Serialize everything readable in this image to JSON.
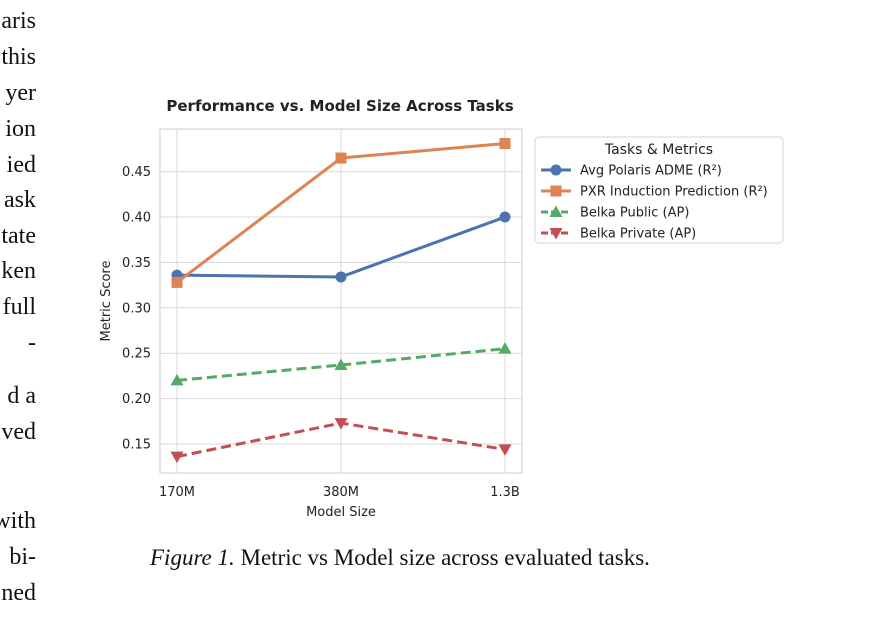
{
  "left_column_fragments": [
    "aris",
    "this",
    "yer",
    "ion",
    "ied",
    "ask",
    "tate",
    "ken",
    "full",
    "-",
    "d a",
    "ved",
    "with",
    "bi-",
    "ned"
  ],
  "caption": {
    "label": "Figure 1.",
    "text": "Metric vs Model size across evaluated tasks."
  },
  "chart_data": {
    "type": "line",
    "title": "Performance vs. Model Size Across Tasks",
    "xlabel": "Model Size",
    "ylabel": "Metric Score",
    "categories": [
      "170M",
      "380M",
      "1.3B"
    ],
    "ylim": [
      0.118,
      0.497
    ],
    "yticks": [
      0.15,
      0.2,
      0.25,
      0.3,
      0.35,
      0.4,
      0.45
    ],
    "ytick_labels": [
      "0.15",
      "0.20",
      "0.25",
      "0.30",
      "0.35",
      "0.40",
      "0.45"
    ],
    "grid": true,
    "legend": {
      "title": "Tasks & Metrics",
      "placement": "outside-right"
    },
    "series": [
      {
        "name": "Avg Polaris ADME (R²)",
        "values": [
          0.336,
          0.334,
          0.4
        ],
        "color": "#4c72b0",
        "marker": "circle",
        "dash": "solid"
      },
      {
        "name": "PXR Induction Prediction (R²)",
        "values": [
          0.328,
          0.465,
          0.481
        ],
        "color": "#dd8452",
        "marker": "square",
        "dash": "solid"
      },
      {
        "name": "Belka Public (AP)",
        "values": [
          0.22,
          0.237,
          0.255
        ],
        "color": "#55a868",
        "marker": "triangle-up",
        "dash": "dashed"
      },
      {
        "name": "Belka Private (AP)",
        "values": [
          0.136,
          0.173,
          0.144
        ],
        "color": "#c44e52",
        "marker": "triangle-down",
        "dash": "dashed"
      }
    ]
  }
}
